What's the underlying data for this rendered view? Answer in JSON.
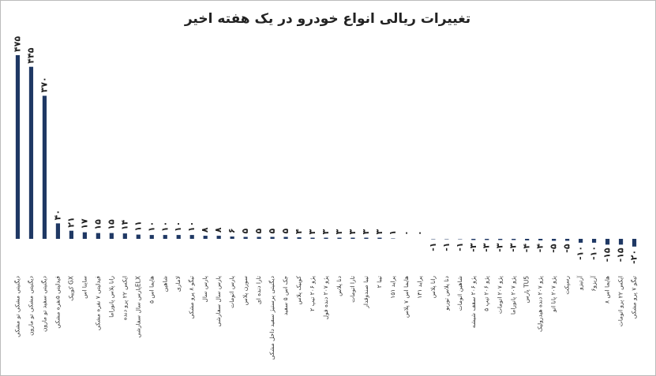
{
  "chart_data": {
    "type": "bar",
    "title": "تغییرات ریالی انواع خودرو در یک هفته اخیر",
    "categories": [
      "دیگنیتی مشکی تو مشکی",
      "دیگنیتی مشکی تو مارون",
      "دیگنیتی سفید تو مارون",
      "فیدلیتی ۵نفره مشکی",
      "کوییک GX",
      "ساینا اس",
      "فیدلیتی ۷ نفره مشکی",
      "رانا پلاس پانوراما",
      "ایکس ۲۲ پرو دنده",
      "پارس سال سفارشیELX",
      "هایما اس ۵",
      "شاهین",
      "لاماری",
      "تیگو ۸ پرو مشکی",
      "پارس سال",
      "پارس سال سفارشی",
      "پارس اتومات",
      "سورن پلاس",
      "تارا دنده ای",
      "دیگنیتی پرستیژ سفید داخل مشکی",
      "جک اس ۵ سفید",
      "کوییک پلاس",
      "پژو ۲۰۶ تیپ ۲",
      "پژو ۲۰۷ دنده فول",
      "دنا پلاس",
      "تارا اتومات",
      "تیبا صندوقدار",
      "تیبا ۲",
      "پراید ۱۵۱",
      "هایما اس ۷ پلاس",
      "پراید ۱۳۱",
      "رانا پلاس",
      "دنا پلاس توربو",
      "شاهین اتومات",
      "پژو ۲۰۶ سقف شیشه",
      "پژو ۲۰۶ تیپ ۵",
      "پژو ۲۰۷ اتومات",
      "پژو ۲۰۷ پانوراما",
      "پارس TU5",
      "پژو ۲۰۷ دنده هیدرولیک",
      "پژو ۲۰۷ پانا اتو",
      "رسپکت",
      "آرتیزو",
      "آریزو۶",
      "هایما اس ۸",
      "ایکس ۲۲ پرو اتومات",
      "تیگو ۷ پرو مشکی"
    ],
    "values": [
      475,
      445,
      370,
      40,
      21,
      17,
      15,
      15,
      14,
      11,
      10,
      10,
      10,
      10,
      8,
      8,
      6,
      5,
      5,
      5,
      5,
      4,
      3,
      3,
      3,
      3,
      3,
      3,
      1,
      0,
      0,
      -1,
      -1,
      -1,
      -3,
      -3,
      -3,
      -3,
      -4,
      -4,
      -5,
      -5,
      -10,
      -10,
      -15,
      -15,
      -20
    ],
    "value_labels": [
      "۴۷۵",
      "۴۴۵",
      "۳۷۰",
      "۴۰",
      "۲۱",
      "۱۷",
      "۱۵",
      "۱۵",
      "۱۴",
      "۱۱",
      "۱۰",
      "۱۰",
      "۱۰",
      "۱۰",
      "۸",
      "۸",
      "۶",
      "۵",
      "۵",
      "۵",
      "۵",
      "۴",
      "۳",
      "۳",
      "۳",
      "۳",
      "۳",
      "۳",
      "۱",
      "۰",
      "۰",
      "-۱",
      "-۱",
      "-۱",
      "-۳",
      "-۳",
      "-۳",
      "-۳",
      "-۴",
      "-۴",
      "-۵",
      "-۵",
      "-۱۰",
      "-۱۰",
      "-۱۵",
      "-۱۵",
      "-۲۰"
    ],
    "color": "#1f3864"
  }
}
